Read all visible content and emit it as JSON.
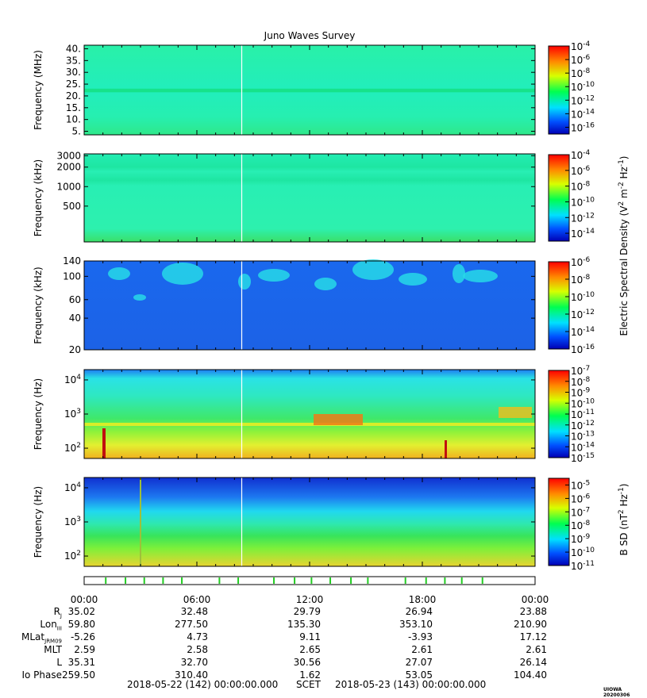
{
  "chart_data": {
    "type": "heatmap",
    "title": "Juno Waves Survey",
    "panels": [
      {
        "ylabel": "Frequency (MHz)",
        "ytick_labels": [
          "5.",
          "10.",
          "15.",
          "20.",
          "25.",
          "30.",
          "35.",
          "40."
        ],
        "ytick_values": [
          5,
          10,
          15,
          20,
          25,
          30,
          35,
          40
        ],
        "ylim": [
          3.5,
          41.5
        ],
        "yscale": "linear",
        "colorbar_labels": [
          "10^-4",
          "10^-6",
          "10^-8",
          "10^-10",
          "10^-12",
          "10^-14",
          "10^-16"
        ],
        "colorbar_exponents": [
          -4,
          -6,
          -8,
          -10,
          -12,
          -14,
          -16
        ],
        "colorbar_range": [
          -17,
          -4
        ]
      },
      {
        "ylabel": "Frequency (kHz)",
        "ytick_labels": [
          "500",
          "1000",
          "2000",
          "3000"
        ],
        "ytick_values": [
          500,
          1000,
          2000,
          3000
        ],
        "ylim": [
          140,
          3200
        ],
        "yscale": "log",
        "colorbar_labels": [
          "10^-4",
          "10^-6",
          "10^-8",
          "10^-10",
          "10^-12",
          "10^-14"
        ],
        "colorbar_exponents": [
          -4,
          -6,
          -8,
          -10,
          -12,
          -14
        ],
        "colorbar_range": [
          -15,
          -4
        ]
      },
      {
        "ylabel": "Frequency (kHz)",
        "ytick_labels": [
          "20",
          "40",
          "60",
          "100",
          "140"
        ],
        "ytick_values": [
          20,
          40,
          60,
          100,
          140
        ],
        "ylim": [
          20,
          140
        ],
        "yscale": "log",
        "colorbar_labels": [
          "10^-6",
          "10^-8",
          "10^-10",
          "10^-12",
          "10^-14",
          "10^-16"
        ],
        "colorbar_exponents": [
          -6,
          -8,
          -10,
          -12,
          -14,
          -16
        ],
        "colorbar_range": [
          -16,
          -6
        ]
      },
      {
        "ylabel": "Frequency (Hz)",
        "ytick_labels": [
          "10^2",
          "10^3",
          "10^4"
        ],
        "ytick_values": [
          100,
          1000,
          10000
        ],
        "ylim": [
          50,
          20000
        ],
        "yscale": "log",
        "colorbar_labels": [
          "10^-7",
          "10^-8",
          "10^-9",
          "10^-10",
          "10^-11",
          "10^-12",
          "10^-13",
          "10^-14",
          "10^-15"
        ],
        "colorbar_exponents": [
          -7,
          -8,
          -9,
          -10,
          -11,
          -12,
          -13,
          -14,
          -15
        ],
        "colorbar_range": [
          -15,
          -7
        ]
      },
      {
        "ylabel": "Frequency (Hz)",
        "ytick_labels": [
          "10^2",
          "10^3",
          "10^4"
        ],
        "ytick_values": [
          100,
          1000,
          10000
        ],
        "ylim": [
          50,
          20000
        ],
        "yscale": "log",
        "colorbar_labels": [
          "10^-5",
          "10^-6",
          "10^-7",
          "10^-8",
          "10^-9",
          "10^-10",
          "10^-11"
        ],
        "colorbar_exponents": [
          -5,
          -6,
          -7,
          -8,
          -9,
          -10,
          -11
        ],
        "colorbar_range": [
          -11,
          -4.5
        ]
      }
    ],
    "colorbar_title_e": "Electric Spectral Density (V^2 m^-2 Hz^-1)",
    "colorbar_title_b": "B SD (nT^2 Hz^-1)",
    "xlim_hours": [
      0,
      24
    ],
    "xtick_hours": [
      0,
      6,
      12,
      18,
      24
    ],
    "xtick_labels": [
      "00:00",
      "06:00",
      "12:00",
      "18:00",
      "00:00"
    ],
    "event_marker_hours": [
      1.15,
      2.2,
      3.2,
      4.2,
      5.2,
      7.2,
      8.2,
      10.1,
      11.2,
      12.1,
      13.1,
      14.2,
      15.1,
      17.1,
      18.2,
      19.2,
      20.1,
      21.2
    ]
  },
  "ephemeris": {
    "rows": [
      {
        "label": "R",
        "sub": "J",
        "values": [
          "35.02",
          "32.48",
          "29.79",
          "26.94",
          "23.88"
        ]
      },
      {
        "label": "Lon",
        "sub": "III",
        "values": [
          "59.80",
          "277.50",
          "135.30",
          "353.10",
          "210.90"
        ]
      },
      {
        "label": "MLat",
        "sub": "JRM09",
        "values": [
          "-5.26",
          "4.73",
          "9.11",
          "-3.93",
          "17.12"
        ]
      },
      {
        "label": "MLT",
        "sub": "",
        "values": [
          "2.59",
          "2.58",
          "2.65",
          "2.61",
          "2.61"
        ]
      },
      {
        "label": "L",
        "sub": "",
        "values": [
          "35.31",
          "32.70",
          "30.56",
          "27.07",
          "26.14"
        ]
      },
      {
        "label": "Io Phase",
        "sub": "",
        "values": [
          "259.50",
          "310.40",
          "1.62",
          "53.05",
          "104.40"
        ]
      }
    ]
  },
  "footer": {
    "start": "2018-05-22 (142) 00:00:00.000",
    "scet": "SCET",
    "end": "2018-05-23 (143) 00:00:00.000",
    "credit": "UIOWA 20200306"
  }
}
